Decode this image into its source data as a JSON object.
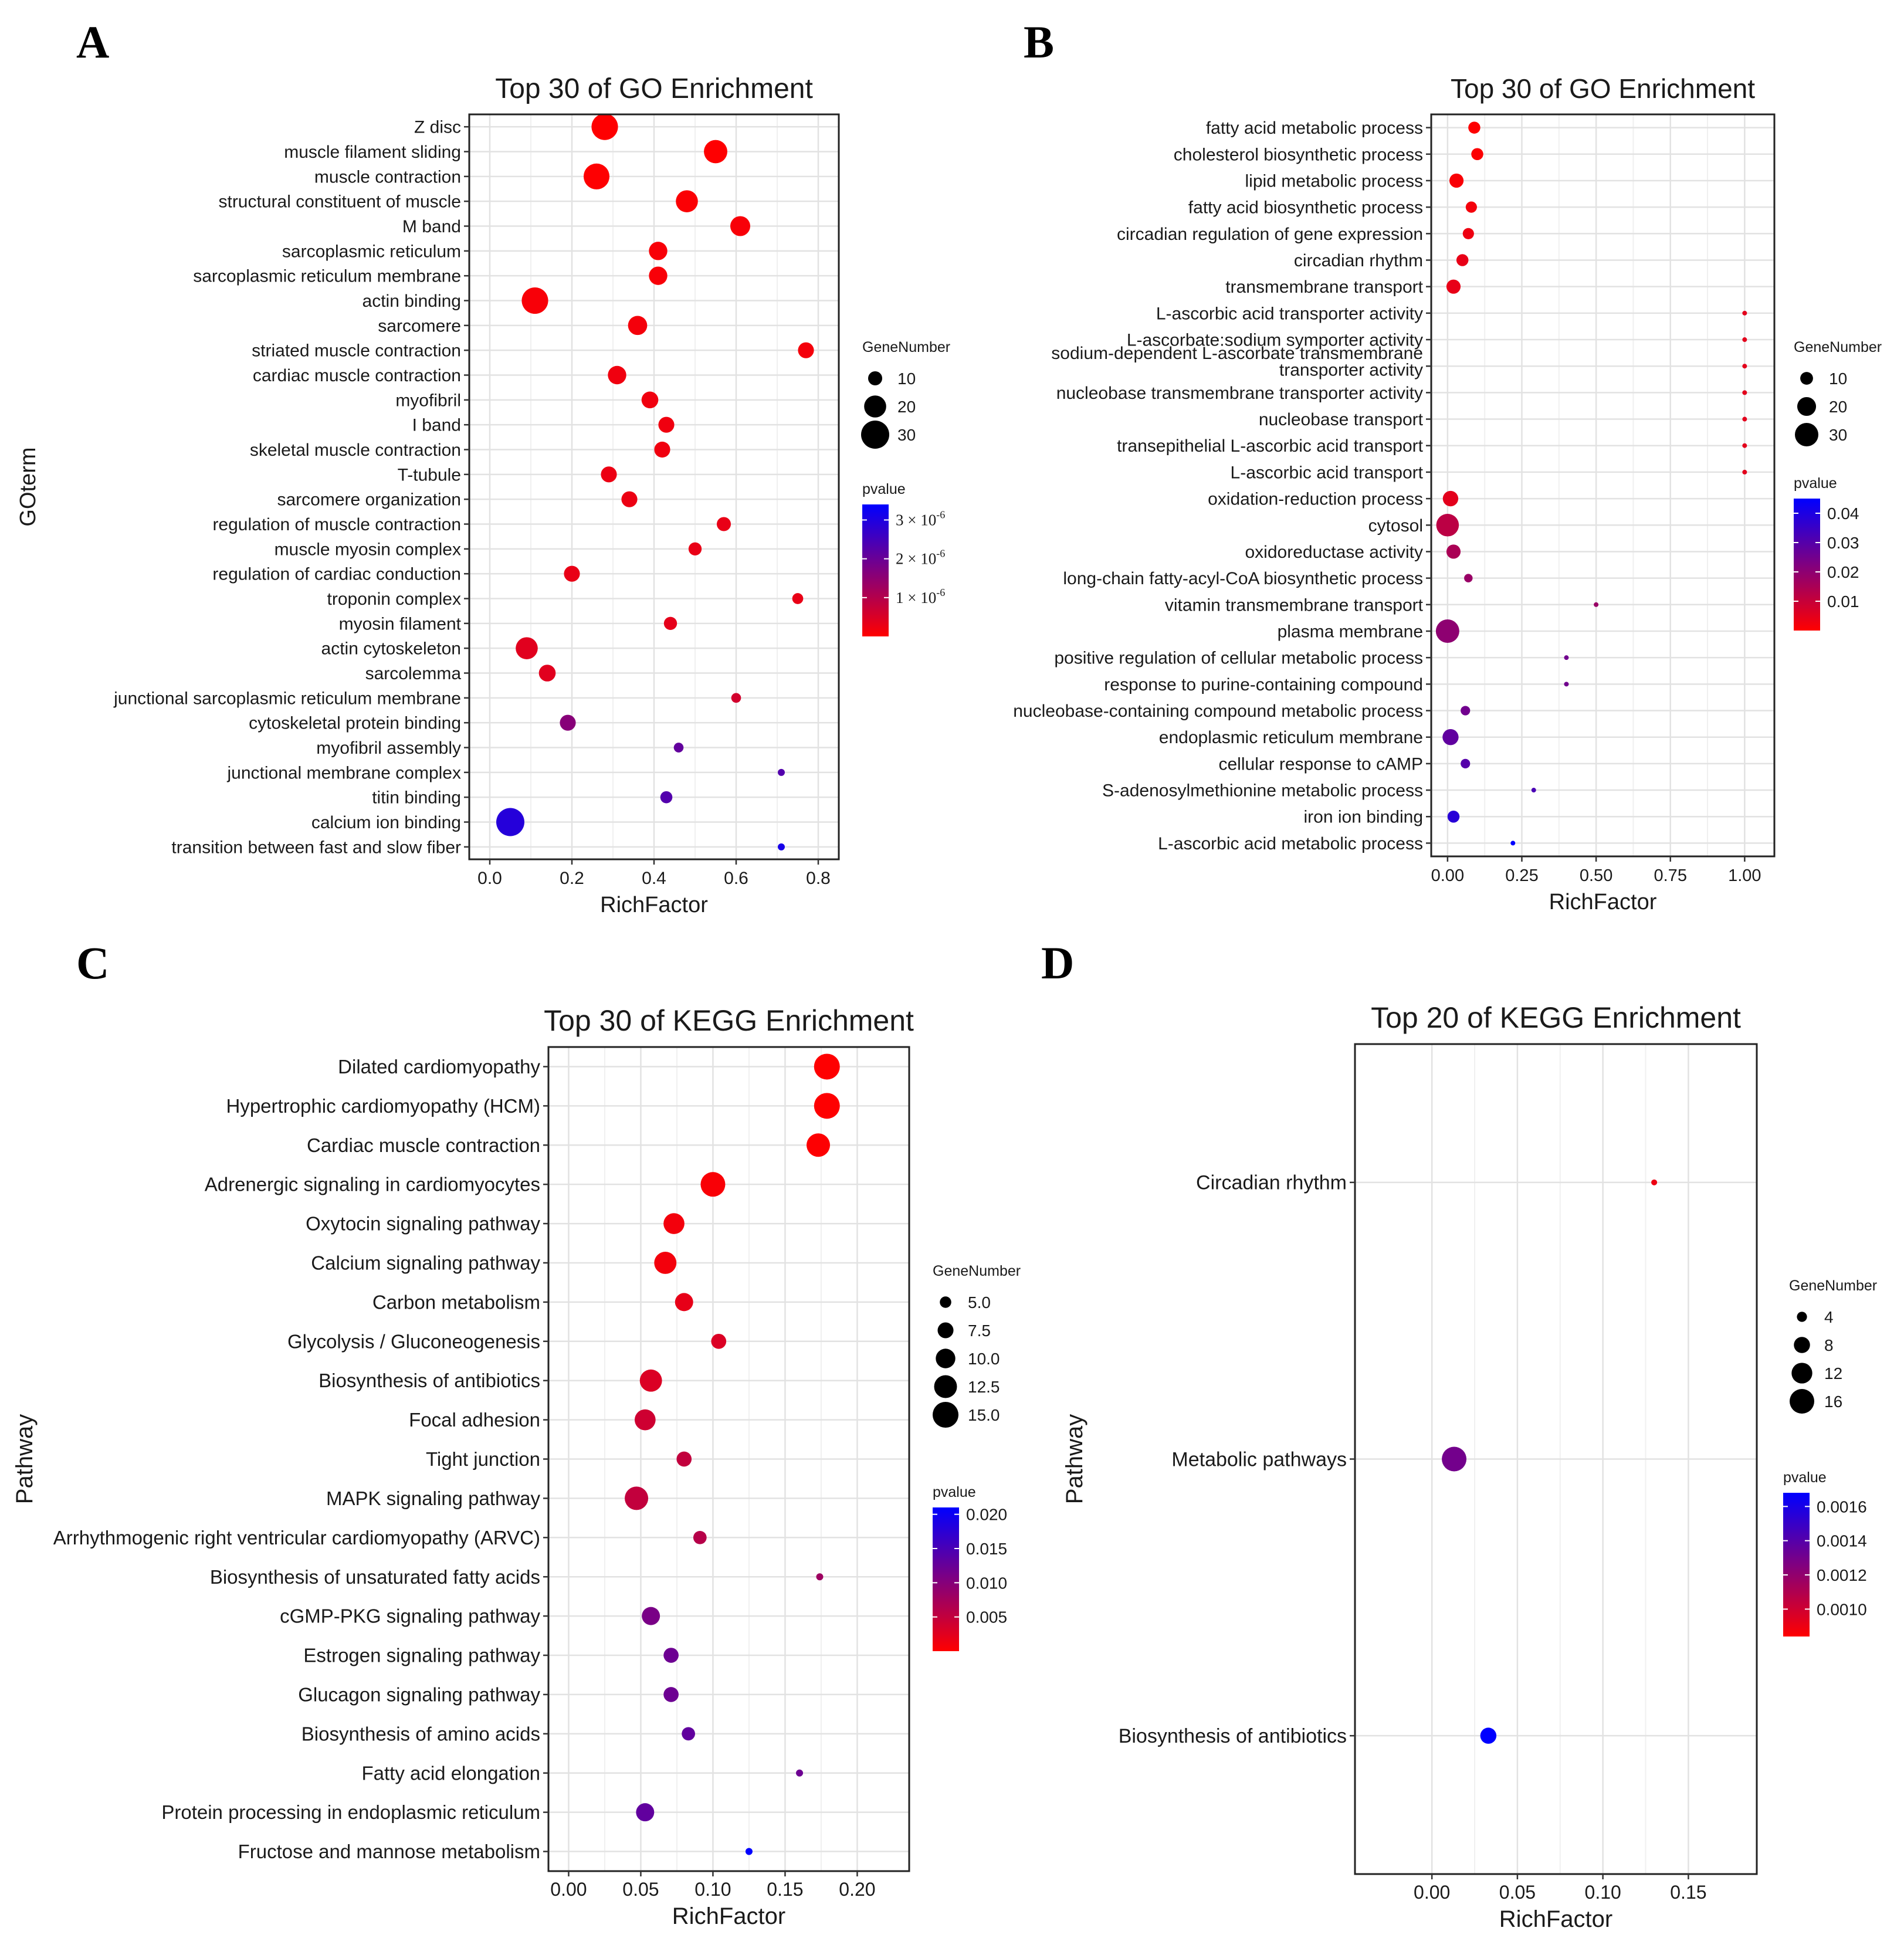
{
  "chart_data": [
    {
      "panel": "A",
      "type": "scatter",
      "title": "Top 30 of GO Enrichment",
      "xlabel": "RichFactor",
      "ylabel": "GOterm",
      "xlim": [
        -0.05,
        0.85
      ],
      "xticks": [
        0.0,
        0.2,
        0.4,
        0.6,
        0.8
      ],
      "xtick_labels": [
        "0.0",
        "0.2",
        "0.4",
        "0.6",
        "0.8"
      ],
      "grid": true,
      "size_legend": {
        "title": "GeneNumber",
        "values": [
          10,
          20,
          30
        ],
        "labels": [
          "10",
          "20",
          "30"
        ]
      },
      "color_legend": {
        "title": "pvalue",
        "min": 0,
        "max": 3.4e-06,
        "ticks": [
          1e-06,
          2e-06,
          3e-06
        ],
        "tick_base": [
          "1 × 10",
          "2 × 10",
          "3 × 10"
        ],
        "tick_exp": [
          "-6",
          "-6",
          "-6"
        ],
        "low_color": "#ff0000",
        "high_color": "#0000ff"
      },
      "categories": [
        "Z disc",
        "muscle filament sliding",
        "muscle contraction",
        "structural constituent of muscle",
        "M band",
        "sarcoplasmic reticulum",
        "sarcoplasmic reticulum membrane",
        "actin binding",
        "sarcomere",
        "striated muscle contraction",
        "cardiac muscle contraction",
        "myofibril",
        "I band",
        "skeletal muscle contraction",
        "T-tubule",
        "sarcomere organization",
        "regulation of muscle contraction",
        "muscle myosin complex",
        "regulation of cardiac conduction",
        "troponin complex",
        "myosin filament",
        "actin cytoskeleton",
        "sarcolemma",
        "junctional sarcoplasmic reticulum membrane",
        "cytoskeletal protein binding",
        "myofibril assembly",
        "junctional membrane complex",
        "titin binding",
        "calcium ion binding",
        "transition between fast and slow fiber"
      ],
      "points": [
        {
          "x": 0.28,
          "gene": 27,
          "p": 1e-08
        },
        {
          "x": 0.55,
          "gene": 22,
          "p": 1e-08
        },
        {
          "x": 0.26,
          "gene": 26,
          "p": 2e-08
        },
        {
          "x": 0.48,
          "gene": 20,
          "p": 5e-08
        },
        {
          "x": 0.61,
          "gene": 17,
          "p": 1e-07
        },
        {
          "x": 0.41,
          "gene": 15,
          "p": 1e-07
        },
        {
          "x": 0.41,
          "gene": 15,
          "p": 1e-07
        },
        {
          "x": 0.11,
          "gene": 27,
          "p": 1e-07
        },
        {
          "x": 0.36,
          "gene": 16,
          "p": 1.5e-07
        },
        {
          "x": 0.77,
          "gene": 12,
          "p": 1.5e-07
        },
        {
          "x": 0.31,
          "gene": 15,
          "p": 2e-07
        },
        {
          "x": 0.39,
          "gene": 13,
          "p": 2e-07
        },
        {
          "x": 0.43,
          "gene": 12,
          "p": 2e-07
        },
        {
          "x": 0.42,
          "gene": 12,
          "p": 2e-07
        },
        {
          "x": 0.29,
          "gene": 12,
          "p": 2.5e-07
        },
        {
          "x": 0.34,
          "gene": 12,
          "p": 2.5e-07
        },
        {
          "x": 0.57,
          "gene": 10,
          "p": 3e-07
        },
        {
          "x": 0.5,
          "gene": 9,
          "p": 3e-07
        },
        {
          "x": 0.2,
          "gene": 12,
          "p": 3e-07
        },
        {
          "x": 0.75,
          "gene": 7,
          "p": 3e-07
        },
        {
          "x": 0.44,
          "gene": 9,
          "p": 3.5e-07
        },
        {
          "x": 0.09,
          "gene": 20,
          "p": 4e-07
        },
        {
          "x": 0.14,
          "gene": 13,
          "p": 4e-07
        },
        {
          "x": 0.6,
          "gene": 6,
          "p": 6e-07
        },
        {
          "x": 0.19,
          "gene": 12,
          "p": 1.6e-06
        },
        {
          "x": 0.46,
          "gene": 6,
          "p": 2.1e-06
        },
        {
          "x": 0.71,
          "gene": 4,
          "p": 2.3e-06
        },
        {
          "x": 0.43,
          "gene": 8,
          "p": 2.3e-06
        },
        {
          "x": 0.05,
          "gene": 30,
          "p": 2.9e-06
        },
        {
          "x": 0.71,
          "gene": 4,
          "p": 3.1e-06
        }
      ]
    },
    {
      "panel": "B",
      "type": "scatter",
      "title": "Top 30 of GO Enrichment",
      "xlabel": "RichFactor",
      "ylabel": "",
      "xlim": [
        -0.055,
        1.1
      ],
      "xticks": [
        0.0,
        0.25,
        0.5,
        0.75,
        1.0
      ],
      "xtick_labels": [
        "0.00",
        "0.25",
        "0.50",
        "0.75",
        "1.00"
      ],
      "grid": true,
      "size_legend": {
        "title": "GeneNumber",
        "values": [
          10,
          20,
          30
        ],
        "labels": [
          "10",
          "20",
          "30"
        ]
      },
      "color_legend": {
        "title": "pvalue",
        "min": 0.0,
        "max": 0.045,
        "ticks": [
          0.01,
          0.02,
          0.03,
          0.04
        ],
        "tick_labels": [
          "0.01",
          "0.02",
          "0.03",
          "0.04"
        ],
        "low_color": "#ff0000",
        "high_color": "#0000ff"
      },
      "categories": [
        "fatty acid metabolic process",
        "cholesterol biosynthetic process",
        "lipid metabolic process",
        "fatty acid biosynthetic process",
        "circadian regulation of gene expression",
        "circadian rhythm",
        "transmembrane transport",
        "L-ascorbic acid transporter activity",
        "L-ascorbate:sodium symporter activity",
        [
          "sodium-dependent L-ascorbate transmembrane",
          "transporter activity"
        ],
        "nucleobase transmembrane transporter activity",
        "nucleobase transport",
        "transepithelial L-ascorbic acid transport",
        "L-ascorbic acid transport",
        "oxidation-reduction process",
        "cytosol",
        "oxidoreductase activity",
        "long-chain fatty-acyl-CoA biosynthetic process",
        "vitamin transmembrane transport",
        "plasma membrane",
        "positive regulation of cellular metabolic process",
        "response to purine-containing compound",
        "nucleobase-containing compound metabolic process",
        "endoplasmic reticulum membrane",
        "cellular response to cAMP",
        "S-adenosylmethionine metabolic process",
        "iron ion binding",
        "L-ascorbic acid metabolic process"
      ],
      "points": [
        {
          "x": 0.09,
          "gene": 9,
          "p": 0.0003
        },
        {
          "x": 0.1,
          "gene": 9,
          "p": 0.0005
        },
        {
          "x": 0.03,
          "gene": 12,
          "p": 0.001
        },
        {
          "x": 0.08,
          "gene": 8,
          "p": 0.002
        },
        {
          "x": 0.07,
          "gene": 8,
          "p": 0.003
        },
        {
          "x": 0.05,
          "gene": 9,
          "p": 0.004
        },
        {
          "x": 0.02,
          "gene": 12,
          "p": 0.004
        },
        {
          "x": 1.0,
          "gene": 2,
          "p": 0.005
        },
        {
          "x": 1.0,
          "gene": 2,
          "p": 0.005
        },
        {
          "x": 1.0,
          "gene": 2,
          "p": 0.005
        },
        {
          "x": 1.0,
          "gene": 2,
          "p": 0.005
        },
        {
          "x": 1.0,
          "gene": 2,
          "p": 0.005
        },
        {
          "x": 1.0,
          "gene": 2,
          "p": 0.005
        },
        {
          "x": 1.0,
          "gene": 2,
          "p": 0.005
        },
        {
          "x": 0.01,
          "gene": 14,
          "p": 0.005
        },
        {
          "x": 0.0,
          "gene": 28,
          "p": 0.012
        },
        {
          "x": 0.02,
          "gene": 12,
          "p": 0.015
        },
        {
          "x": 0.07,
          "gene": 5,
          "p": 0.018
        },
        {
          "x": 0.5,
          "gene": 2,
          "p": 0.018
        },
        {
          "x": 0.0,
          "gene": 30,
          "p": 0.02
        },
        {
          "x": 0.4,
          "gene": 2,
          "p": 0.025
        },
        {
          "x": 0.4,
          "gene": 2,
          "p": 0.025
        },
        {
          "x": 0.06,
          "gene": 6,
          "p": 0.025
        },
        {
          "x": 0.01,
          "gene": 15,
          "p": 0.028
        },
        {
          "x": 0.06,
          "gene": 6,
          "p": 0.03
        },
        {
          "x": 0.29,
          "gene": 2,
          "p": 0.032
        },
        {
          "x": 0.02,
          "gene": 9,
          "p": 0.038
        },
        {
          "x": 0.22,
          "gene": 2,
          "p": 0.045
        }
      ]
    },
    {
      "panel": "C",
      "type": "scatter",
      "title": "Top 30 of KEGG Enrichment",
      "xlabel": "RichFactor",
      "ylabel": "Pathway",
      "xlim": [
        -0.014,
        0.236
      ],
      "xticks": [
        0.0,
        0.05,
        0.1,
        0.15,
        0.2
      ],
      "xtick_labels": [
        "0.00",
        "0.05",
        "0.10",
        "0.15",
        "0.20"
      ],
      "grid": true,
      "size_legend": {
        "title": "GeneNumber",
        "values": [
          5.0,
          7.5,
          10.0,
          12.5,
          15.0
        ],
        "labels": [
          "5.0",
          "7.5",
          "10.0",
          "12.5",
          "15.0"
        ]
      },
      "color_legend": {
        "title": "pvalue",
        "min": 0.0,
        "max": 0.021,
        "ticks": [
          0.005,
          0.01,
          0.015,
          0.02
        ],
        "tick_labels": [
          "0.005",
          "0.010",
          "0.015",
          "0.020"
        ],
        "low_color": "#ff0000",
        "high_color": "#0000ff"
      },
      "categories": [
        "Dilated cardiomyopathy",
        "Hypertrophic cardiomyopathy (HCM)",
        "Cardiac muscle contraction",
        "Adrenergic signaling in cardiomyocytes",
        "Oxytocin signaling pathway",
        "Calcium signaling pathway",
        "Carbon metabolism",
        "Glycolysis / Gluconeogenesis",
        "Biosynthesis of antibiotics",
        "Focal adhesion",
        "Tight junction",
        "MAPK signaling pathway",
        "Arrhythmogenic right ventricular cardiomyopathy (ARVC)",
        "Biosynthesis of unsaturated fatty acids",
        "cGMP-PKG signaling pathway",
        "Estrogen signaling pathway",
        "Glucagon signaling pathway",
        "Biosynthesis of amino acids",
        "Fatty acid elongation",
        "Protein processing in endoplasmic reticulum",
        "Fructose and mannose metabolism"
      ],
      "points": [
        {
          "x": 0.179,
          "gene": 15,
          "p": 0.0001
        },
        {
          "x": 0.179,
          "gene": 15,
          "p": 0.0001
        },
        {
          "x": 0.173,
          "gene": 13,
          "p": 0.0002
        },
        {
          "x": 0.1,
          "gene": 14,
          "p": 0.0005
        },
        {
          "x": 0.073,
          "gene": 11,
          "p": 0.001
        },
        {
          "x": 0.067,
          "gene": 12,
          "p": 0.001
        },
        {
          "x": 0.08,
          "gene": 9,
          "p": 0.002
        },
        {
          "x": 0.104,
          "gene": 7,
          "p": 0.003
        },
        {
          "x": 0.057,
          "gene": 12,
          "p": 0.003
        },
        {
          "x": 0.053,
          "gene": 11,
          "p": 0.004
        },
        {
          "x": 0.08,
          "gene": 7,
          "p": 0.005
        },
        {
          "x": 0.047,
          "gene": 13,
          "p": 0.005
        },
        {
          "x": 0.091,
          "gene": 6,
          "p": 0.006
        },
        {
          "x": 0.174,
          "gene": 3,
          "p": 0.008
        },
        {
          "x": 0.057,
          "gene": 9,
          "p": 0.011
        },
        {
          "x": 0.071,
          "gene": 7,
          "p": 0.012
        },
        {
          "x": 0.071,
          "gene": 7,
          "p": 0.012
        },
        {
          "x": 0.083,
          "gene": 6,
          "p": 0.013
        },
        {
          "x": 0.16,
          "gene": 3,
          "p": 0.012
        },
        {
          "x": 0.053,
          "gene": 9,
          "p": 0.013
        },
        {
          "x": 0.125,
          "gene": 3,
          "p": 0.021
        }
      ]
    },
    {
      "panel": "D",
      "type": "scatter",
      "title": "Top 20 of KEGG Enrichment",
      "xlabel": "RichFactor",
      "ylabel": "Pathway",
      "xlim": [
        -0.045,
        0.19
      ],
      "xticks": [
        0.0,
        0.05,
        0.1,
        0.15
      ],
      "xtick_labels": [
        "0.00",
        "0.05",
        "0.10",
        "0.15"
      ],
      "grid": true,
      "size_legend": {
        "title": "GeneNumber",
        "values": [
          4,
          8,
          12,
          16
        ],
        "labels": [
          "4",
          "8",
          "12",
          "16"
        ]
      },
      "color_legend": {
        "title": "pvalue",
        "min": 0.00084,
        "max": 0.00168,
        "ticks": [
          0.001,
          0.0012,
          0.0014,
          0.0016
        ],
        "tick_labels": [
          "0.0010",
          "0.0012",
          "0.0014",
          "0.0016"
        ],
        "low_color": "#ff0000",
        "high_color": "#0000ff"
      },
      "categories": [
        "Circadian rhythm",
        "Metabolic pathways",
        "Biosynthesis of antibiotics"
      ],
      "points": [
        {
          "x": 0.13,
          "gene": 2,
          "p": 0.0009
        },
        {
          "x": 0.013,
          "gene": 16,
          "p": 0.0013
        },
        {
          "x": 0.033,
          "gene": 8,
          "p": 0.00168
        }
      ]
    }
  ]
}
